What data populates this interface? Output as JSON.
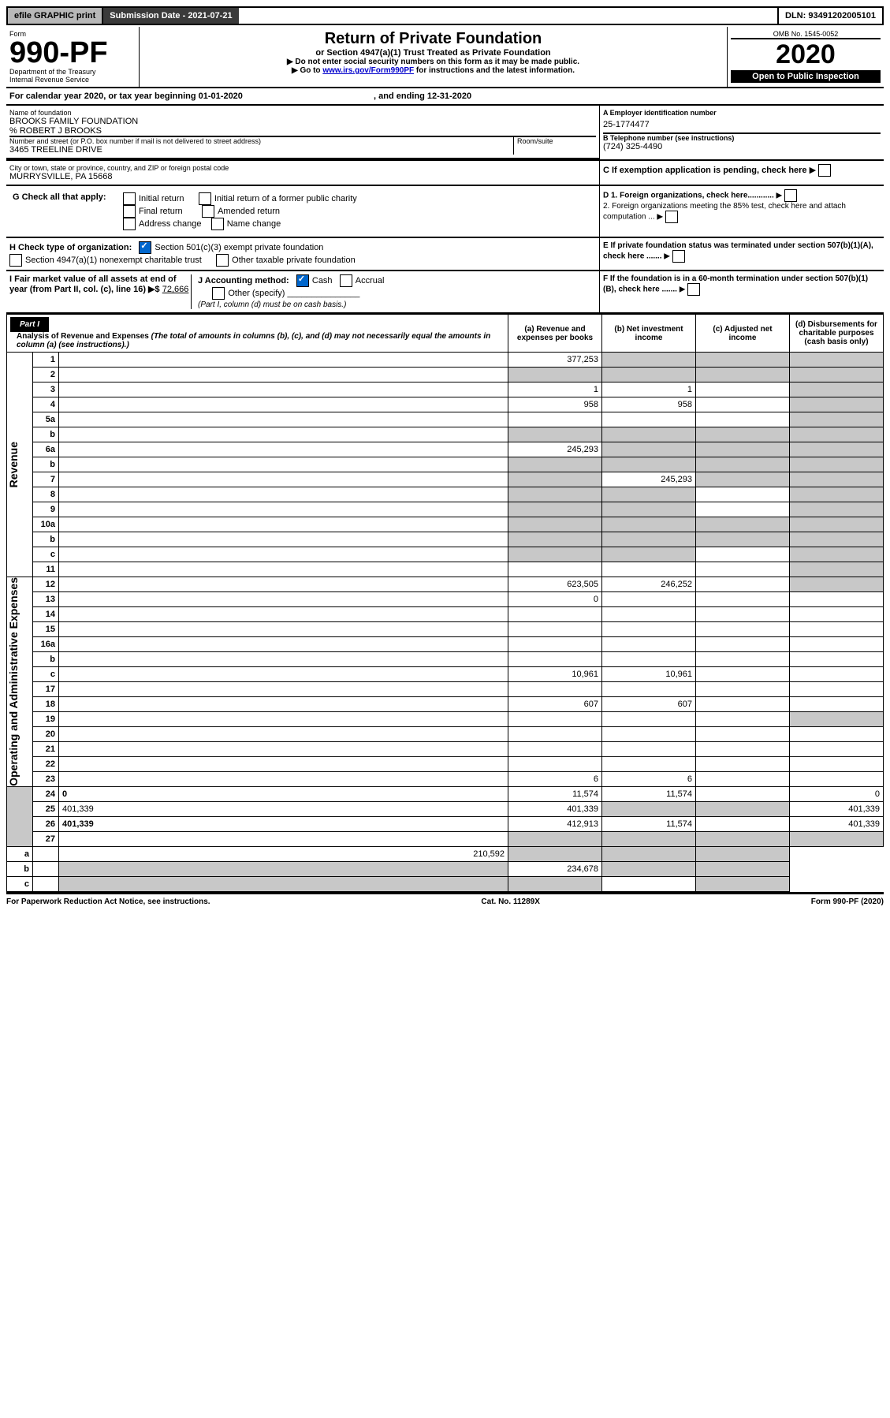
{
  "topbar": {
    "efile": "efile GRAPHIC print",
    "subdate_label": "Submission Date - 2021-07-21",
    "dln": "DLN: 93491202005101"
  },
  "form": {
    "form_label": "Form",
    "number": "990-PF",
    "dept": "Department of the Treasury",
    "irs": "Internal Revenue Service",
    "title": "Return of Private Foundation",
    "subtitle": "or Section 4947(a)(1) Trust Treated as Private Foundation",
    "note1": "▶ Do not enter social security numbers on this form as it may be made public.",
    "note2a": "▶ Go to ",
    "note2_link": "www.irs.gov/Form990PF",
    "note2b": " for instructions and the latest information.",
    "omb": "OMB No. 1545-0052",
    "year": "2020",
    "open": "Open to Public Inspection"
  },
  "calendar": {
    "text": "For calendar year 2020, or tax year beginning 01-01-2020",
    "middle": ", and ending 12-31-2020"
  },
  "id": {
    "name_label": "Name of foundation",
    "name": "BROOKS FAMILY FOUNDATION",
    "care_of": "% ROBERT J BROOKS",
    "addr_label": "Number and street (or P.O. box number if mail is not delivered to street address)",
    "addr": "3465 TREELINE DRIVE",
    "room_label": "Room/suite",
    "city_label": "City or town, state or province, country, and ZIP or foreign postal code",
    "city": "MURRYSVILLE, PA  15668",
    "ein_label": "A Employer identification number",
    "ein": "25-1774477",
    "phone_label": "B Telephone number (see instructions)",
    "phone": "(724) 325-4490",
    "exempt_label": "C If exemption application is pending, check here"
  },
  "checks": {
    "g_label": "G Check all that apply:",
    "g1": "Initial return",
    "g2": "Initial return of a former public charity",
    "g3": "Final return",
    "g4": "Amended return",
    "g5": "Address change",
    "g6": "Name change",
    "h_label": "H Check type of organization:",
    "h1": "Section 501(c)(3) exempt private foundation",
    "h2": "Section 4947(a)(1) nonexempt charitable trust",
    "h3": "Other taxable private foundation",
    "i_label": "I Fair market value of all assets at end of year (from Part II, col. (c), line 16) ▶$",
    "i_value": "72,666",
    "j_label": "J Accounting method:",
    "j1": "Cash",
    "j2": "Accrual",
    "j3": "Other (specify)",
    "j_note": "(Part I, column (d) must be on cash basis.)",
    "d1": "D 1. Foreign organizations, check here............",
    "d2": "2. Foreign organizations meeting the 85% test, check here and attach computation ...",
    "e": "E  If private foundation status was terminated under section 507(b)(1)(A), check here .......",
    "f": "F  If the foundation is in a 60-month termination under section 507(b)(1)(B), check here .......",
    "arrow": "▶"
  },
  "part1": {
    "label": "Part I",
    "title": "Analysis of Revenue and Expenses",
    "note": " (The total of amounts in columns (b), (c), and (d) may not necessarily equal the amounts in column (a) (see instructions).)",
    "col_a": "(a)   Revenue and expenses per books",
    "col_b": "(b)   Net investment income",
    "col_c": "(c)   Adjusted net income",
    "col_d": "(d)   Disbursements for charitable purposes (cash basis only)",
    "rev_label": "Revenue",
    "oae_label": "Operating and Administrative Expenses"
  },
  "rows": [
    {
      "n": "1",
      "d": "",
      "a": "377,253",
      "b": "",
      "c": "",
      "shade": [
        "b",
        "c",
        "d"
      ]
    },
    {
      "n": "2",
      "d": "",
      "a": "",
      "b": "",
      "c": "",
      "shade": [
        "a",
        "b",
        "c",
        "d"
      ]
    },
    {
      "n": "3",
      "d": "",
      "a": "1",
      "b": "1",
      "c": "",
      "shade": [
        "d"
      ]
    },
    {
      "n": "4",
      "d": "",
      "a": "958",
      "b": "958",
      "c": "",
      "shade": [
        "d"
      ]
    },
    {
      "n": "5a",
      "d": "",
      "a": "",
      "b": "",
      "c": "",
      "shade": [
        "d"
      ]
    },
    {
      "n": "b",
      "d": "",
      "a": "",
      "b": "",
      "c": "",
      "shade": [
        "a",
        "b",
        "c",
        "d"
      ]
    },
    {
      "n": "6a",
      "d": "",
      "a": "245,293",
      "b": "",
      "c": "",
      "shade": [
        "b",
        "c",
        "d"
      ]
    },
    {
      "n": "b",
      "d": "",
      "a": "",
      "b": "",
      "c": "",
      "shade": [
        "a",
        "b",
        "c",
        "d"
      ]
    },
    {
      "n": "7",
      "d": "",
      "a": "",
      "b": "245,293",
      "c": "",
      "shade": [
        "a",
        "c",
        "d"
      ]
    },
    {
      "n": "8",
      "d": "",
      "a": "",
      "b": "",
      "c": "",
      "shade": [
        "a",
        "b",
        "d"
      ]
    },
    {
      "n": "9",
      "d": "",
      "a": "",
      "b": "",
      "c": "",
      "shade": [
        "a",
        "b",
        "d"
      ]
    },
    {
      "n": "10a",
      "d": "",
      "a": "",
      "b": "",
      "c": "",
      "shade": [
        "a",
        "b",
        "c",
        "d"
      ]
    },
    {
      "n": "b",
      "d": "",
      "a": "",
      "b": "",
      "c": "",
      "shade": [
        "a",
        "b",
        "c",
        "d"
      ]
    },
    {
      "n": "c",
      "d": "",
      "a": "",
      "b": "",
      "c": "",
      "shade": [
        "a",
        "b",
        "d"
      ]
    },
    {
      "n": "11",
      "d": "",
      "a": "",
      "b": "",
      "c": "",
      "shade": [
        "d"
      ]
    },
    {
      "n": "12",
      "d": "",
      "a": "623,505",
      "b": "246,252",
      "c": "",
      "bold": true,
      "shade": [
        "d"
      ]
    },
    {
      "n": "13",
      "d": "",
      "a": "0",
      "b": "",
      "c": ""
    },
    {
      "n": "14",
      "d": "",
      "a": "",
      "b": "",
      "c": ""
    },
    {
      "n": "15",
      "d": "",
      "a": "",
      "b": "",
      "c": ""
    },
    {
      "n": "16a",
      "d": "",
      "a": "",
      "b": "",
      "c": ""
    },
    {
      "n": "b",
      "d": "",
      "a": "",
      "b": "",
      "c": ""
    },
    {
      "n": "c",
      "d": "",
      "a": "10,961",
      "b": "10,961",
      "c": ""
    },
    {
      "n": "17",
      "d": "",
      "a": "",
      "b": "",
      "c": ""
    },
    {
      "n": "18",
      "d": "",
      "a": "607",
      "b": "607",
      "c": ""
    },
    {
      "n": "19",
      "d": "",
      "a": "",
      "b": "",
      "c": "",
      "shade": [
        "d"
      ]
    },
    {
      "n": "20",
      "d": "",
      "a": "",
      "b": "",
      "c": ""
    },
    {
      "n": "21",
      "d": "",
      "a": "",
      "b": "",
      "c": ""
    },
    {
      "n": "22",
      "d": "",
      "a": "",
      "b": "",
      "c": ""
    },
    {
      "n": "23",
      "d": "",
      "a": "6",
      "b": "6",
      "c": ""
    },
    {
      "n": "24",
      "d": "0",
      "a": "11,574",
      "b": "11,574",
      "c": "",
      "bold": true
    },
    {
      "n": "25",
      "d": "401,339",
      "a": "401,339",
      "b": "",
      "c": "",
      "shade": [
        "b",
        "c"
      ]
    },
    {
      "n": "26",
      "d": "401,339",
      "a": "412,913",
      "b": "11,574",
      "c": "",
      "bold": true
    },
    {
      "n": "27",
      "d": "",
      "a": "",
      "b": "",
      "c": "",
      "shade": [
        "a",
        "b",
        "c",
        "d"
      ]
    },
    {
      "n": "a",
      "d": "",
      "a": "210,592",
      "b": "",
      "c": "",
      "bold": true,
      "shade": [
        "b",
        "c",
        "d"
      ]
    },
    {
      "n": "b",
      "d": "",
      "a": "",
      "b": "234,678",
      "c": "",
      "bold": true,
      "shade": [
        "a",
        "c",
        "d"
      ]
    },
    {
      "n": "c",
      "d": "",
      "a": "",
      "b": "",
      "c": "",
      "bold": true,
      "shade": [
        "a",
        "b",
        "d"
      ]
    }
  ],
  "footer": {
    "left": "For Paperwork Reduction Act Notice, see instructions.",
    "middle": "Cat. No. 11289X",
    "right": "Form 990-PF (2020)"
  }
}
